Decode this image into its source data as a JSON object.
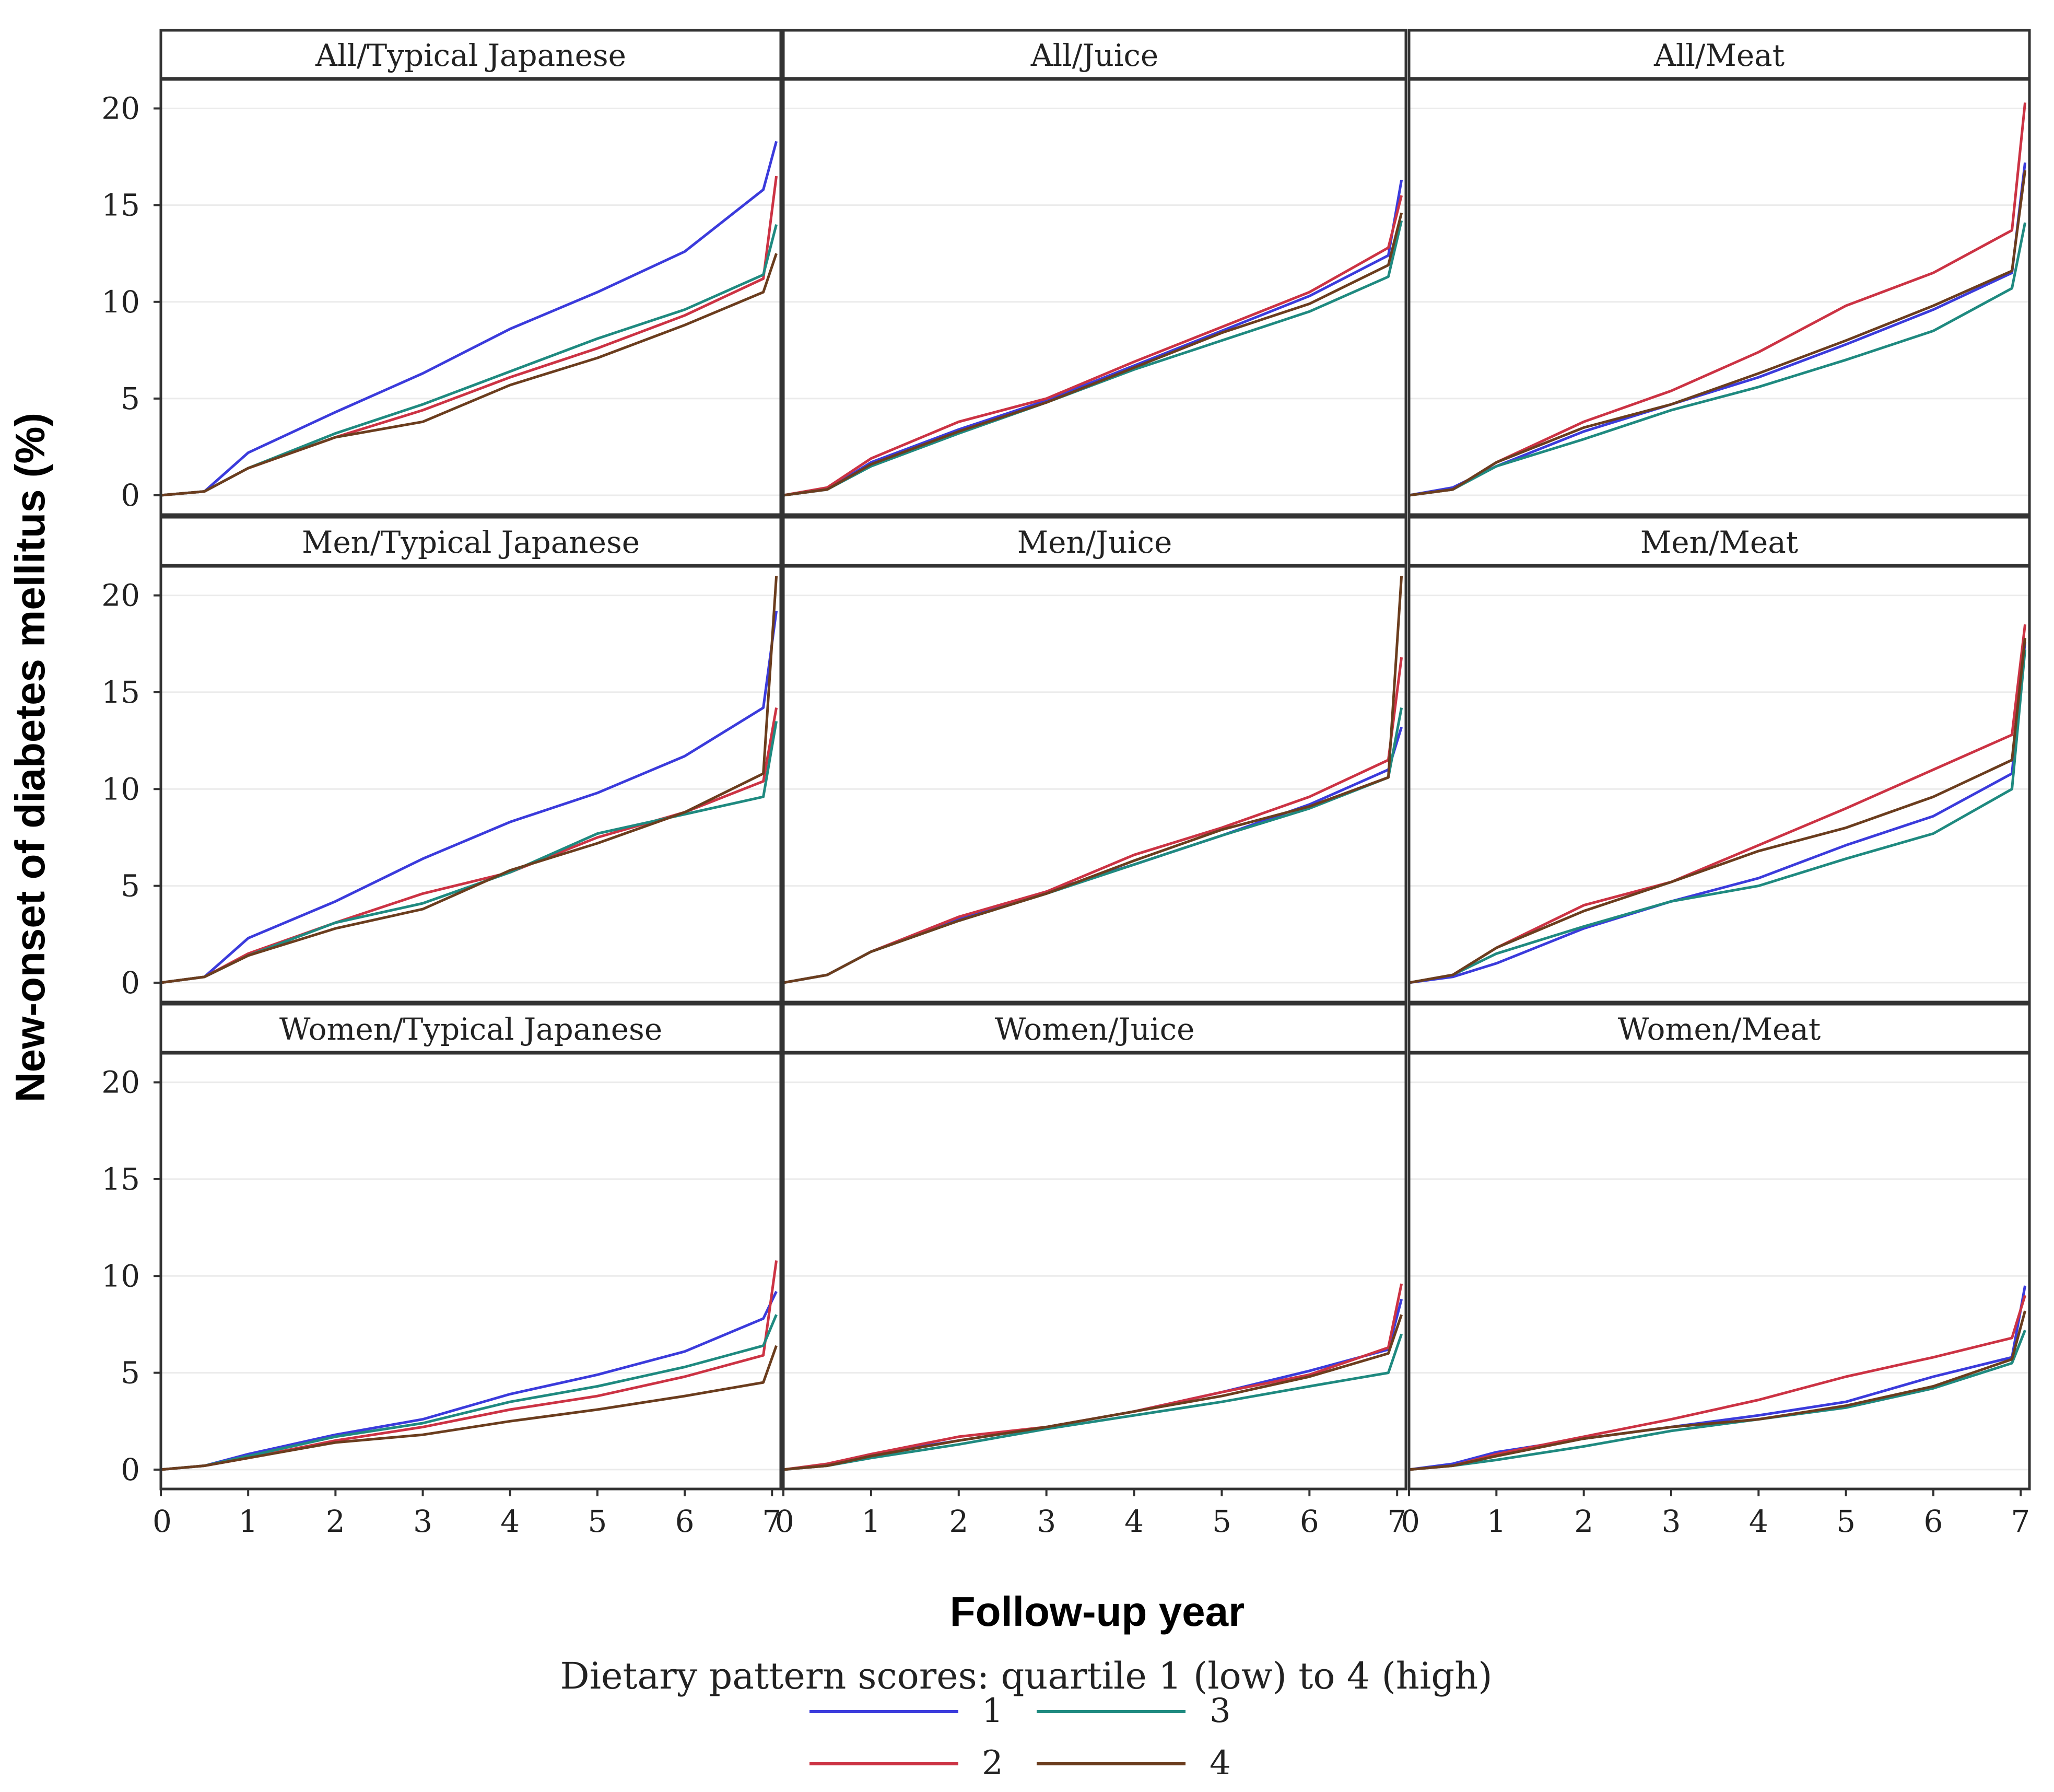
{
  "chart_data": {
    "type": "line",
    "chart_kind": "faceted cumulative incidence curves",
    "xlabel": "Follow-up year",
    "ylabel": "New-onset of diabetes mellitus (%)",
    "xlim": [
      0,
      7.1
    ],
    "ylim": [
      -1,
      21.5
    ],
    "x_ticks": [
      0,
      1,
      2,
      3,
      4,
      5,
      6,
      7
    ],
    "x_tick_labels": [
      "0",
      "1",
      "2",
      "3",
      "4",
      "5",
      "6",
      "7"
    ],
    "y_ticks": [
      0,
      5,
      10,
      15,
      20
    ],
    "y_tick_labels": [
      "0",
      "5",
      "10",
      "15",
      "20"
    ],
    "grid": true,
    "legend": {
      "title": "Dietary pattern scores: quartile 1 (low) to 4 (high)",
      "position": "bottom",
      "entries": [
        {
          "label": "1",
          "color": "#3b3bdc"
        },
        {
          "label": "2",
          "color": "#cc3344"
        },
        {
          "label": "3",
          "color": "#1f8a80"
        },
        {
          "label": "4",
          "color": "#6b3d1e"
        }
      ]
    },
    "x": [
      0,
      0.5,
      1,
      2,
      3,
      4,
      5,
      6,
      6.9,
      7.05
    ],
    "facets": [
      {
        "label": "All/Typical Japanese",
        "series": [
          {
            "name": "1",
            "values": [
              0,
              0.2,
              2.2,
              4.3,
              6.3,
              8.6,
              10.5,
              12.6,
              15.8,
              18.3
            ]
          },
          {
            "name": "2",
            "values": [
              0,
              0.2,
              1.4,
              3.0,
              4.4,
              6.1,
              7.6,
              9.3,
              11.2,
              16.5
            ]
          },
          {
            "name": "3",
            "values": [
              0,
              0.2,
              1.4,
              3.2,
              4.7,
              6.4,
              8.1,
              9.6,
              11.4,
              14.0
            ]
          },
          {
            "name": "4",
            "values": [
              0,
              0.2,
              1.4,
              3.0,
              3.8,
              5.7,
              7.1,
              8.8,
              10.5,
              12.5
            ]
          }
        ]
      },
      {
        "label": "All/Juice",
        "series": [
          {
            "name": "1",
            "values": [
              0,
              0.3,
              1.7,
              3.4,
              4.9,
              6.7,
              8.5,
              10.3,
              12.4,
              16.3
            ]
          },
          {
            "name": "2",
            "values": [
              0,
              0.4,
              1.9,
              3.8,
              5.0,
              6.9,
              8.7,
              10.5,
              12.8,
              15.5
            ]
          },
          {
            "name": "3",
            "values": [
              0,
              0.3,
              1.5,
              3.2,
              4.8,
              6.5,
              8.0,
              9.5,
              11.3,
              14.2
            ]
          },
          {
            "name": "4",
            "values": [
              0,
              0.3,
              1.6,
              3.3,
              4.8,
              6.6,
              8.4,
              9.9,
              11.9,
              14.6
            ]
          }
        ]
      },
      {
        "label": "All/Meat",
        "series": [
          {
            "name": "1",
            "values": [
              0,
              0.4,
              1.5,
              3.3,
              4.7,
              6.1,
              7.8,
              9.6,
              11.5,
              17.2
            ]
          },
          {
            "name": "2",
            "values": [
              0,
              0.3,
              1.7,
              3.8,
              5.4,
              7.4,
              9.8,
              11.5,
              13.7,
              20.3
            ]
          },
          {
            "name": "3",
            "values": [
              0,
              0.3,
              1.5,
              2.9,
              4.4,
              5.6,
              7.0,
              8.5,
              10.7,
              14.1
            ]
          },
          {
            "name": "4",
            "values": [
              0,
              0.3,
              1.7,
              3.5,
              4.7,
              6.3,
              8.0,
              9.8,
              11.6,
              16.8
            ]
          }
        ]
      },
      {
        "label": "Men/Typical Japanese",
        "series": [
          {
            "name": "1",
            "values": [
              0,
              0.3,
              2.3,
              4.2,
              6.4,
              8.3,
              9.8,
              11.7,
              14.2,
              19.2
            ]
          },
          {
            "name": "2",
            "values": [
              0,
              0.3,
              1.5,
              3.1,
              4.6,
              5.7,
              7.5,
              8.8,
              10.4,
              14.2
            ]
          },
          {
            "name": "3",
            "values": [
              0,
              0.3,
              1.4,
              3.1,
              4.1,
              5.7,
              7.7,
              8.7,
              9.6,
              13.5
            ]
          },
          {
            "name": "4",
            "values": [
              0,
              0.3,
              1.4,
              2.8,
              3.8,
              5.8,
              7.2,
              8.8,
              10.8,
              21.0
            ]
          }
        ]
      },
      {
        "label": "Men/Juice",
        "series": [
          {
            "name": "1",
            "values": [
              0,
              0.4,
              1.6,
              3.3,
              4.7,
              6.1,
              7.6,
              9.2,
              11.0,
              13.2
            ]
          },
          {
            "name": "2",
            "values": [
              0,
              0.4,
              1.6,
              3.4,
              4.7,
              6.6,
              8.0,
              9.6,
              11.5,
              16.8
            ]
          },
          {
            "name": "3",
            "values": [
              0,
              0.4,
              1.6,
              3.2,
              4.6,
              6.1,
              7.6,
              9.0,
              10.6,
              14.2
            ]
          },
          {
            "name": "4",
            "values": [
              0,
              0.4,
              1.6,
              3.2,
              4.6,
              6.3,
              7.9,
              9.1,
              10.6,
              21.0
            ]
          }
        ]
      },
      {
        "label": "Men/Meat",
        "series": [
          {
            "name": "1",
            "values": [
              0,
              0.3,
              1.0,
              2.8,
              4.2,
              5.4,
              7.1,
              8.6,
              10.8,
              17.6
            ]
          },
          {
            "name": "2",
            "values": [
              0,
              0.4,
              1.8,
              4.0,
              5.2,
              7.1,
              9.0,
              11.0,
              12.8,
              18.5
            ]
          },
          {
            "name": "3",
            "values": [
              0,
              0.4,
              1.5,
              2.9,
              4.2,
              5.0,
              6.4,
              7.7,
              10.0,
              17.2
            ]
          },
          {
            "name": "4",
            "values": [
              0,
              0.4,
              1.8,
              3.7,
              5.2,
              6.8,
              8.0,
              9.6,
              11.5,
              17.8
            ]
          }
        ]
      },
      {
        "label": "Women/Typical Japanese",
        "series": [
          {
            "name": "1",
            "values": [
              0,
              0.2,
              0.8,
              1.8,
              2.6,
              3.9,
              4.9,
              6.1,
              7.8,
              9.2
            ]
          },
          {
            "name": "2",
            "values": [
              0,
              0.2,
              0.6,
              1.5,
              2.2,
              3.1,
              3.8,
              4.8,
              5.9,
              10.8
            ]
          },
          {
            "name": "3",
            "values": [
              0,
              0.2,
              0.7,
              1.7,
              2.4,
              3.5,
              4.3,
              5.3,
              6.4,
              8.0
            ]
          },
          {
            "name": "4",
            "values": [
              0,
              0.2,
              0.6,
              1.4,
              1.8,
              2.5,
              3.1,
              3.8,
              4.5,
              6.4
            ]
          }
        ]
      },
      {
        "label": "Women/Juice",
        "series": [
          {
            "name": "1",
            "values": [
              0,
              0.2,
              0.8,
              1.5,
              2.2,
              3.0,
              4.0,
              5.1,
              6.2,
              8.8
            ]
          },
          {
            "name": "2",
            "values": [
              0,
              0.3,
              0.8,
              1.7,
              2.2,
              3.0,
              4.0,
              4.9,
              6.3,
              9.6
            ]
          },
          {
            "name": "3",
            "values": [
              0,
              0.2,
              0.6,
              1.3,
              2.1,
              2.8,
              3.5,
              4.3,
              5.0,
              7.0
            ]
          },
          {
            "name": "4",
            "values": [
              0,
              0.2,
              0.7,
              1.5,
              2.2,
              3.0,
              3.8,
              4.8,
              6.0,
              8.0
            ]
          }
        ]
      },
      {
        "label": "Women/Meat",
        "series": [
          {
            "name": "1",
            "values": [
              0,
              0.3,
              0.9,
              1.6,
              2.2,
              2.8,
              3.5,
              4.8,
              5.8,
              9.5
            ]
          },
          {
            "name": "2",
            "values": [
              0,
              0.2,
              0.8,
              1.7,
              2.6,
              3.6,
              4.8,
              5.8,
              6.8,
              9.0
            ]
          },
          {
            "name": "3",
            "values": [
              0,
              0.2,
              0.5,
              1.2,
              2.0,
              2.6,
              3.2,
              4.2,
              5.5,
              7.2
            ]
          },
          {
            "name": "4",
            "values": [
              0,
              0.2,
              0.7,
              1.6,
              2.2,
              2.6,
              3.3,
              4.3,
              5.7,
              8.2
            ]
          }
        ]
      }
    ]
  }
}
